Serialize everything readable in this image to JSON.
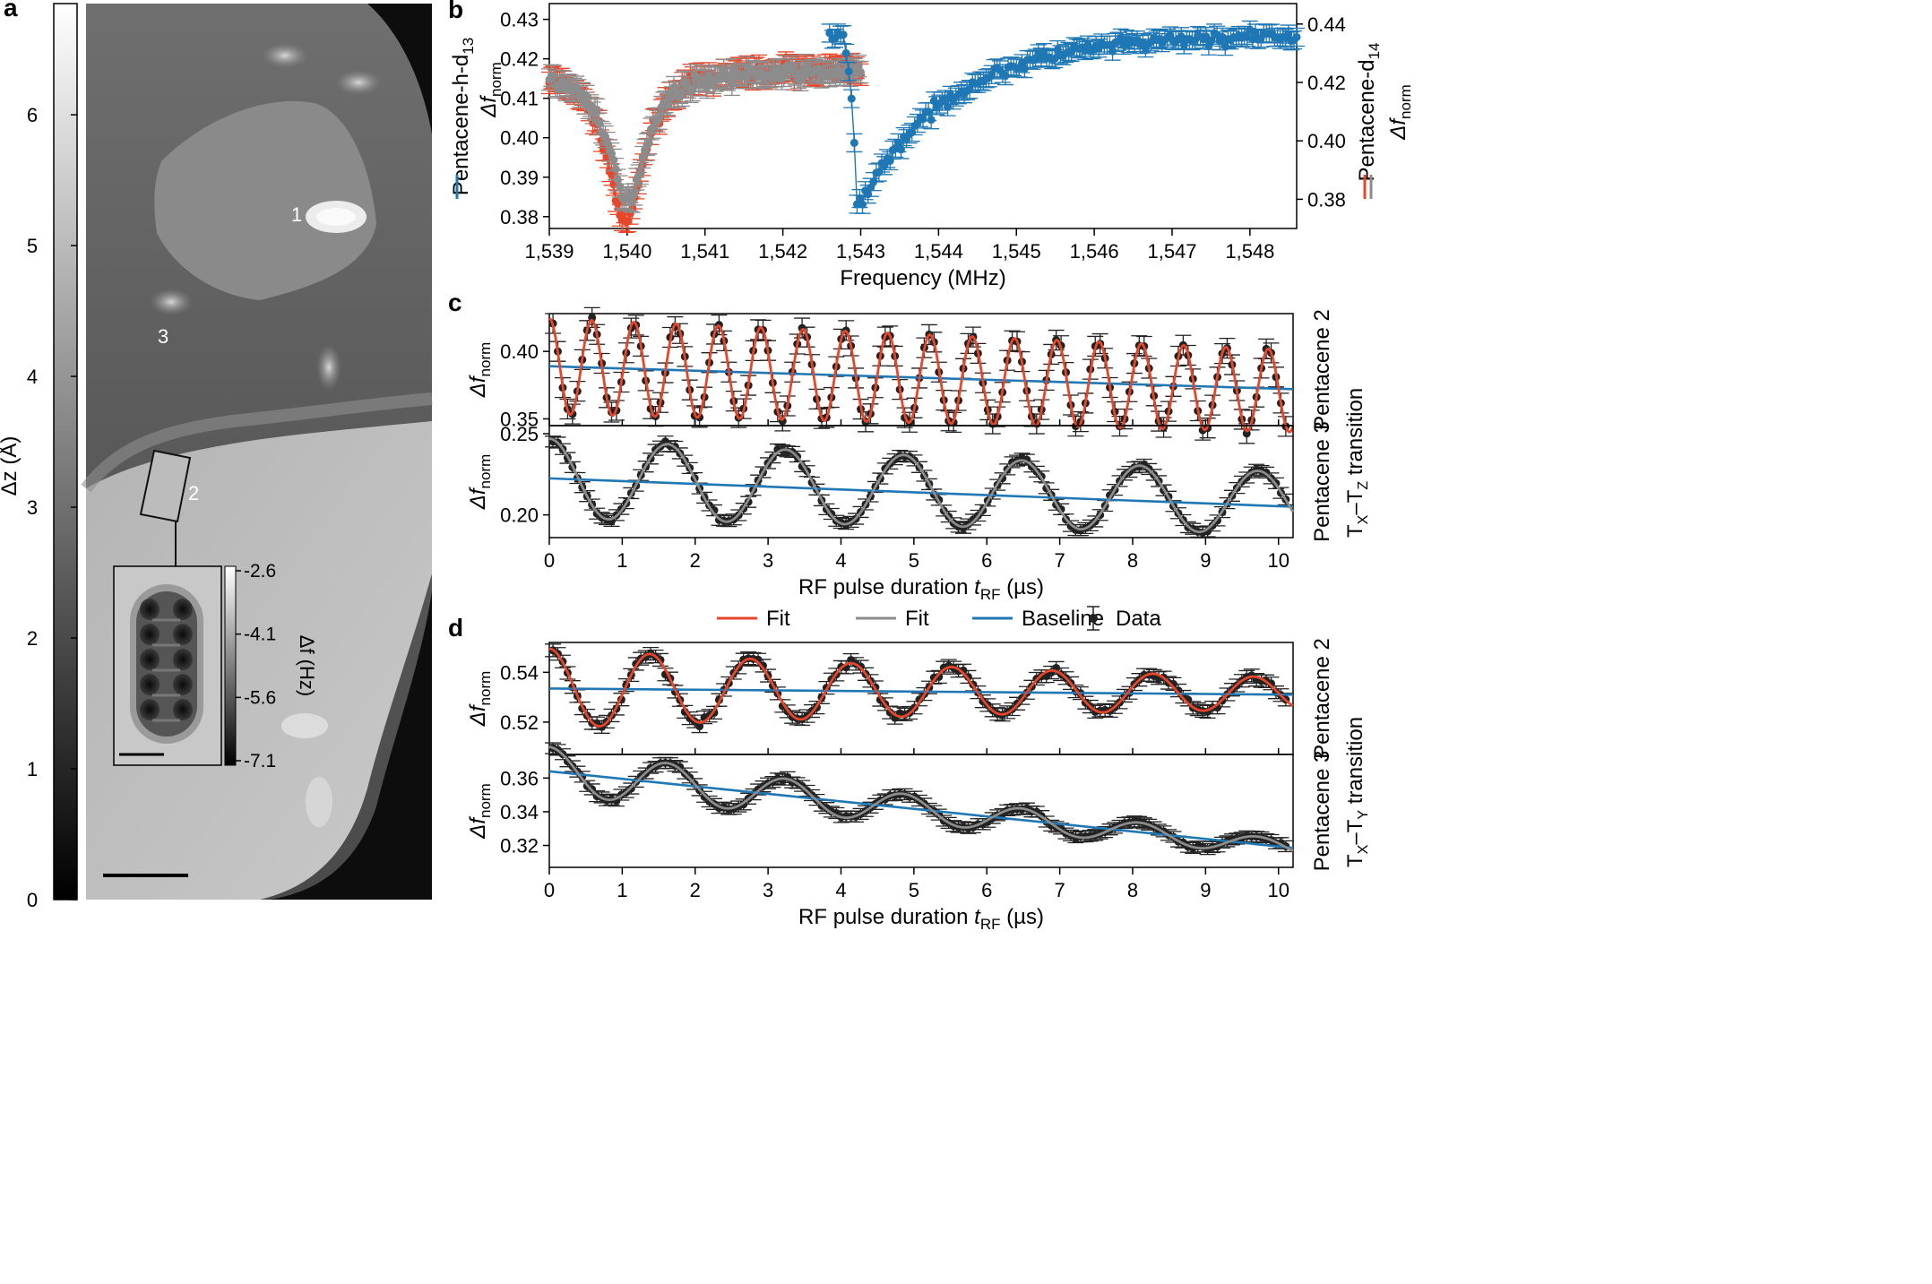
{
  "panel_labels": {
    "a": "a",
    "b": "b",
    "c": "c",
    "d": "d"
  },
  "panel_a": {
    "colorbar_label": "Δz (Å)",
    "colorbar_ticks": [
      "0",
      "1",
      "2",
      "3",
      "4",
      "5",
      "6"
    ],
    "molecule_labels": [
      "1",
      "2",
      "3"
    ],
    "inset_colorbar_label": "Δf (Hz)",
    "inset_colorbar_ticks": [
      "-2.6",
      "-4.1",
      "-5.6",
      "-7.1"
    ]
  },
  "chart_data": [
    {
      "id": "b",
      "type": "scatter",
      "xlabel": "Frequency (MHz)",
      "ylabel_left": "Δf",
      "ylabel_left_sub": "norm",
      "ylabel_right": "Δf",
      "ylabel_right_sub": "norm",
      "series_label_left": "Pentacene-h-d",
      "series_label_left_sub": "13",
      "series_label_right": "Pentacene-d",
      "series_label_right_sub": "14",
      "xlim": [
        1539,
        1548.6
      ],
      "ylim_left": [
        0.377,
        0.434
      ],
      "ylim_right": [
        0.37,
        0.447
      ],
      "x_ticks": [
        1539,
        1540,
        1541,
        1542,
        1543,
        1544,
        1545,
        1546,
        1547,
        1548
      ],
      "x_tick_labels": [
        "1,539",
        "1,540",
        "1,541",
        "1,542",
        "1,543",
        "1,544",
        "1,545",
        "1,546",
        "1,547",
        "1,548"
      ],
      "y_ticks_left": [
        "0.38",
        "0.39",
        "0.40",
        "0.41",
        "0.42",
        "0.43"
      ],
      "y_ticks_right": [
        "0.38",
        "0.40",
        "0.42",
        "0.44"
      ],
      "series": [
        {
          "axis": "left",
          "color": "#1f77b4",
          "x_range": [
            1542.6,
            1548.6
          ],
          "baseline": 0.426,
          "dip_center": 1542.95,
          "dip_depth": 0.044,
          "dip_width_left": 0.15,
          "dip_width_right": 1.0
        },
        {
          "axis": "right",
          "color": "#e8462a",
          "x_range": [
            1539.0,
            1543.0
          ],
          "baseline": 0.425,
          "dip_center": 1539.98,
          "dip_depth": 0.053,
          "dip_width": 0.28
        },
        {
          "axis": "right",
          "color": "#8c8c8c",
          "x_range": [
            1539.0,
            1543.0
          ],
          "baseline": 0.424,
          "dip_center": 1540.0,
          "dip_depth": 0.045,
          "dip_width": 0.28
        }
      ]
    },
    {
      "id": "c_top",
      "type": "line",
      "xlim": [
        0,
        10.2
      ],
      "ylim": [
        0.345,
        0.428
      ],
      "y_ticks": [
        "0.35",
        "0.40"
      ],
      "ylabel": "Δf",
      "ylabel_sub": "norm",
      "side_label": "Pentacene 2",
      "fit": {
        "color": "#e8462a",
        "offset": 0.389,
        "slope": -0.0018,
        "amplitude": 0.0355,
        "amp_decay": 0.015,
        "period": 0.58,
        "phase": 0.0
      },
      "baseline": {
        "color": "#1f77b4",
        "y_start": 0.389,
        "y_end": 0.372
      }
    },
    {
      "id": "c_bottom",
      "type": "line",
      "xlim": [
        0,
        10.2
      ],
      "ylim": [
        0.186,
        0.255
      ],
      "y_ticks": [
        "0.20",
        "0.25"
      ],
      "ylabel": "Δf",
      "ylabel_sub": "norm",
      "side_label": "Pentacene 3",
      "xlabel": "RF pulse duration t",
      "xlabel_sub": "RF",
      "xlabel_unit": " (µs)",
      "x_ticks": [
        "0",
        "1",
        "2",
        "3",
        "4",
        "5",
        "6",
        "7",
        "8",
        "9",
        "10"
      ],
      "fit": {
        "color": "#8c8c8c",
        "offset": 0.2225,
        "slope": -0.0015,
        "amplitude": 0.0245,
        "amp_decay": 0.025,
        "period": 1.62,
        "phase": 0.0
      },
      "baseline": {
        "color": "#1f77b4",
        "y_start": 0.2225,
        "y_end": 0.205
      }
    },
    {
      "id": "d_top",
      "type": "line",
      "xlim": [
        0,
        10.2
      ],
      "ylim": [
        0.507,
        0.552
      ],
      "y_ticks": [
        "0.52",
        "0.54"
      ],
      "ylabel": "Δf",
      "ylabel_sub": "norm",
      "side_label": "Pentacene 2",
      "fit": {
        "color": "#e8462a",
        "offset": 0.5335,
        "slope": -0.0002,
        "amplitude": 0.016,
        "amp_decay": 0.09,
        "period": 1.38,
        "phase": 0.0
      },
      "baseline": {
        "color": "#1f77b4",
        "y_start": 0.5335,
        "y_end": 0.531
      }
    },
    {
      "id": "d_bottom",
      "type": "line",
      "xlim": [
        0,
        10.2
      ],
      "ylim": [
        0.307,
        0.374
      ],
      "y_ticks": [
        "0.32",
        "0.34",
        "0.36"
      ],
      "ylabel": "Δf",
      "ylabel_sub": "norm",
      "side_label": "Pentacene 3",
      "xlabel": "RF pulse duration t",
      "xlabel_sub": "RF",
      "xlabel_unit": " (µs)",
      "x_ticks": [
        "0",
        "1",
        "2",
        "3",
        "4",
        "5",
        "6",
        "7",
        "8",
        "9",
        "10"
      ],
      "fit": {
        "color": "#8c8c8c",
        "offset": 0.364,
        "slope": -0.0045,
        "amplitude": 0.0145,
        "amp_decay": 0.11,
        "period": 1.62,
        "phase": 0.0
      },
      "baseline": {
        "color": "#1f77b4",
        "y_start": 0.364,
        "y_end": 0.3185
      }
    }
  ],
  "side_transitions": {
    "c": {
      "main": "T",
      "s1": "X",
      "dash": "–T",
      "s2": "Z",
      "tail": " transition"
    },
    "d": {
      "main": "T",
      "s1": "X",
      "dash": "–T",
      "s2": "Y",
      "tail": " transition"
    }
  },
  "legend": {
    "items": [
      {
        "label": "Fit",
        "color": "#e8462a",
        "kind": "line"
      },
      {
        "label": "Fit",
        "color": "#8c8c8c",
        "kind": "line"
      },
      {
        "label": "Baseline",
        "color": "#1f77b4",
        "kind": "line"
      },
      {
        "label": "Data",
        "color": "#222222",
        "kind": "marker"
      }
    ]
  }
}
